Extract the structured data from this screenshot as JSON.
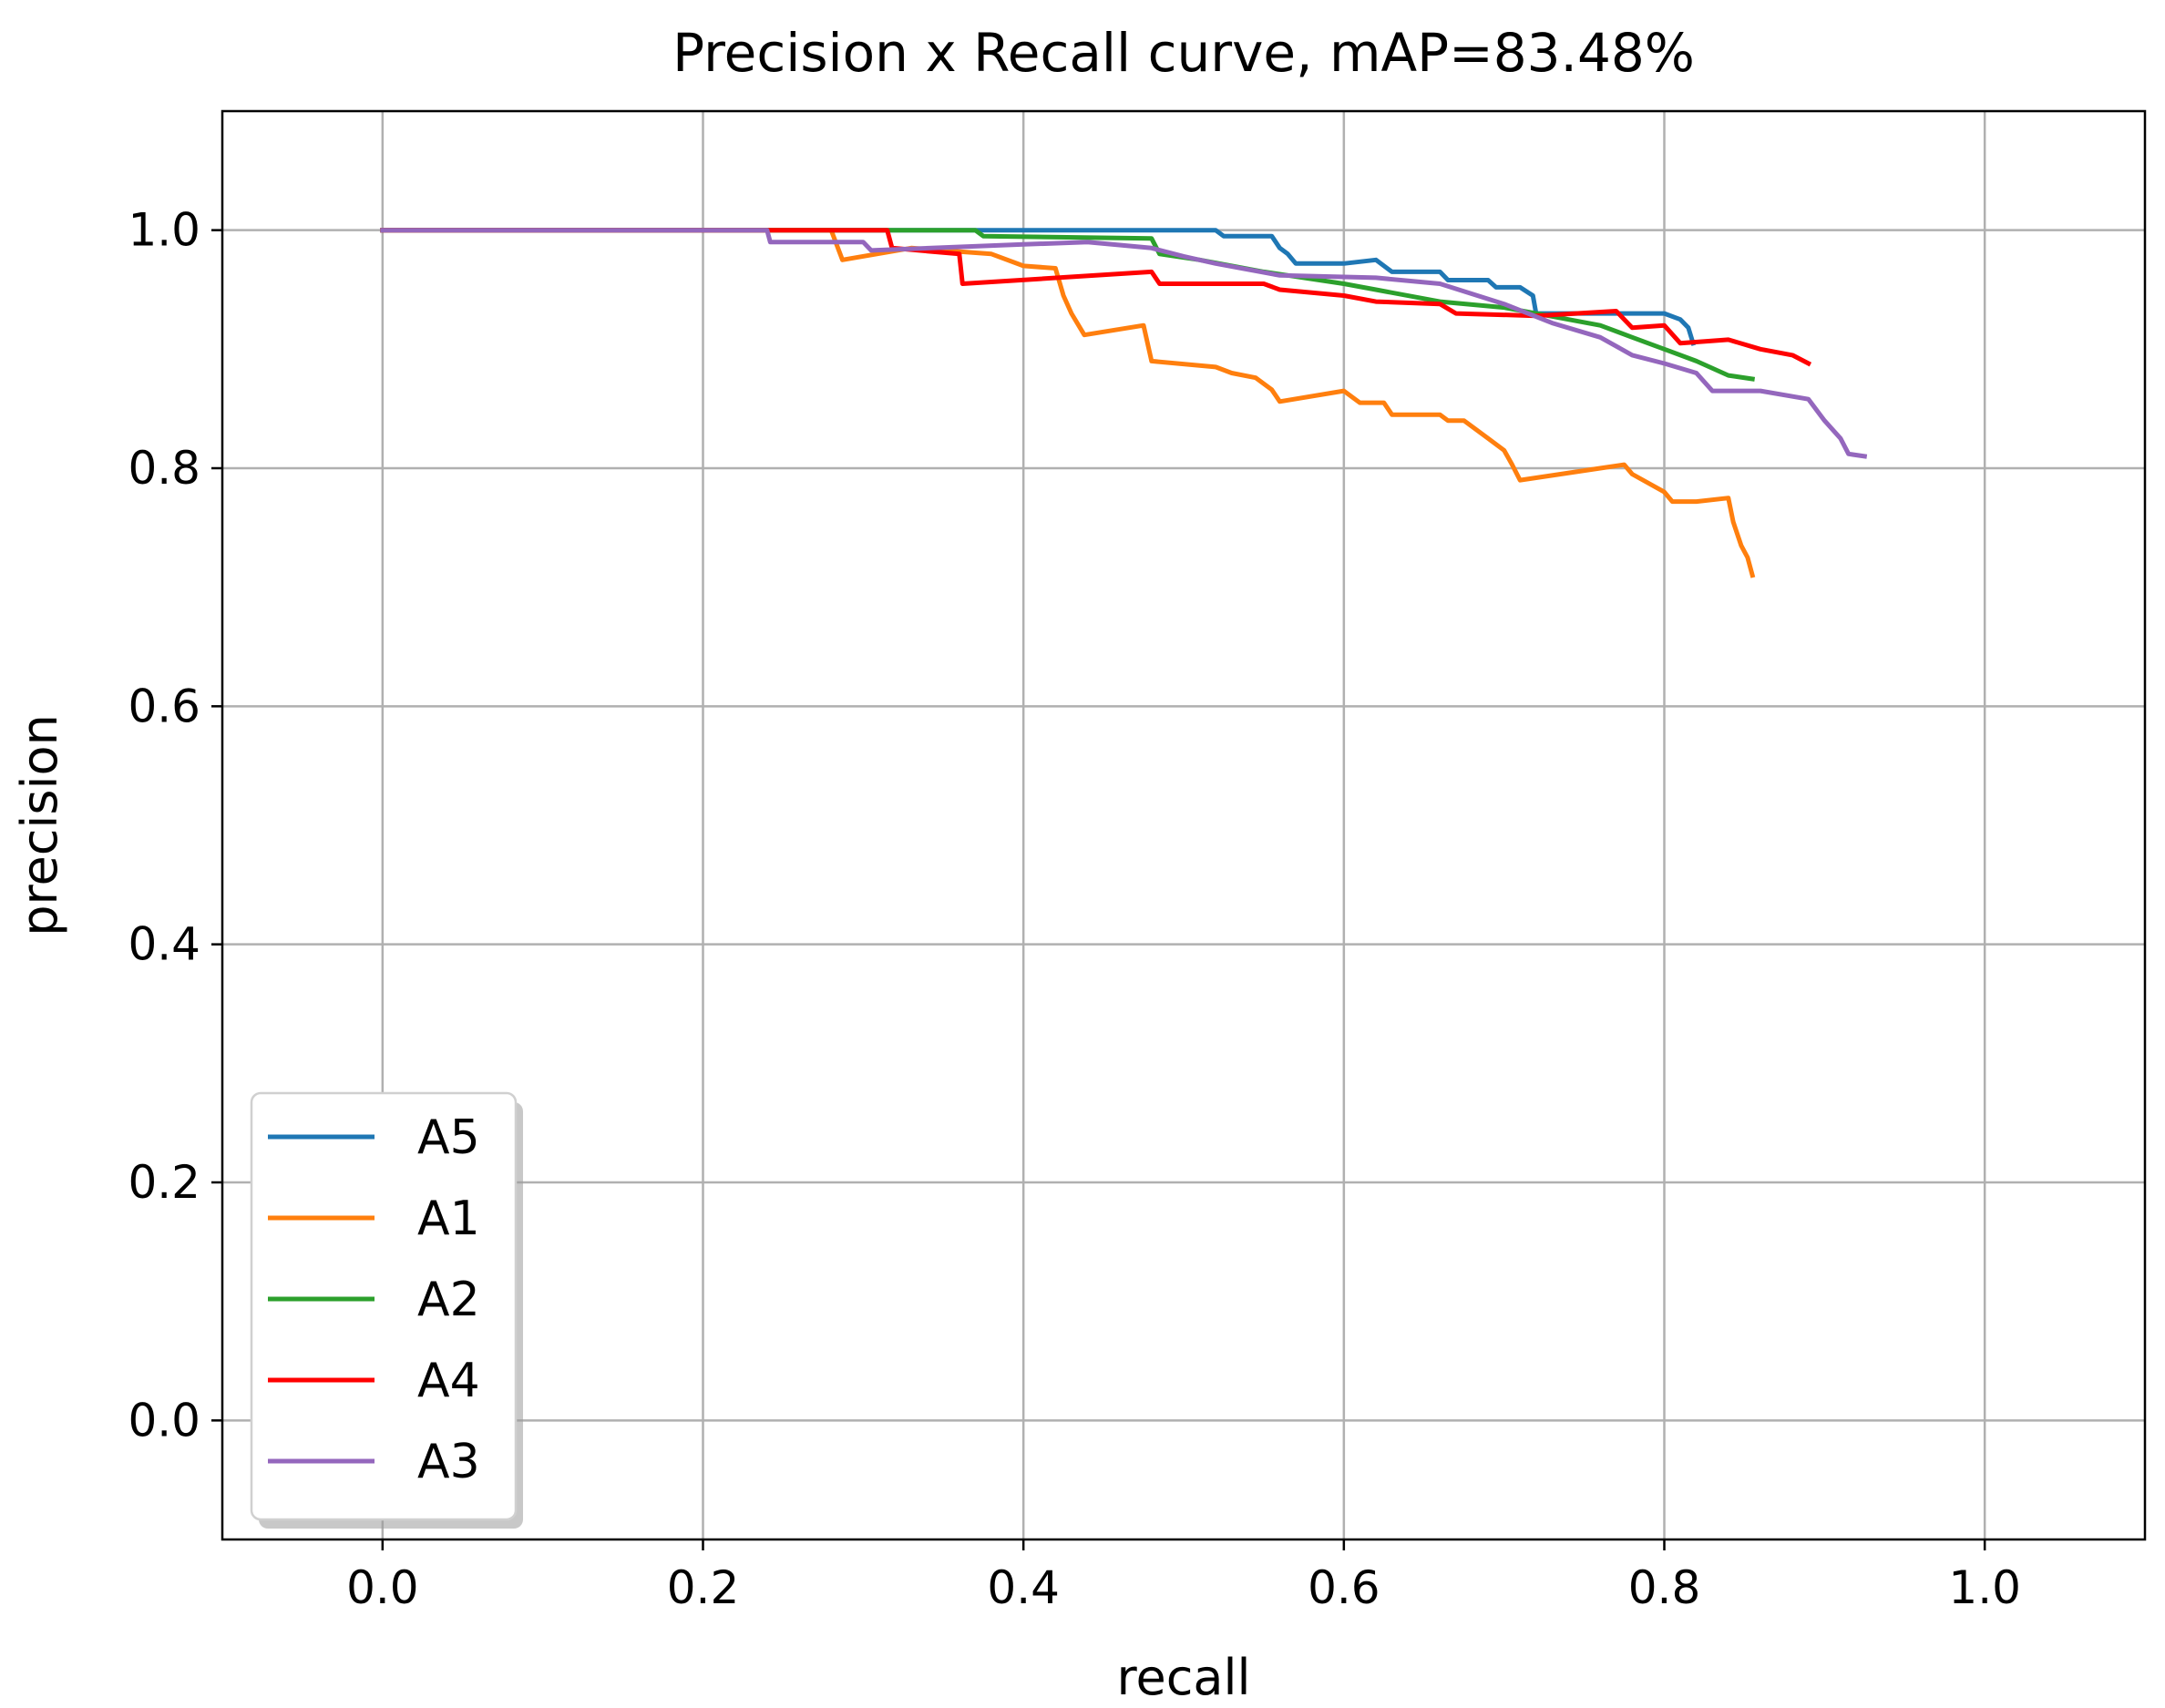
{
  "chart_data": {
    "type": "line",
    "title": "Precision x Recall curve, mAP=83.48%",
    "xlabel": "recall",
    "ylabel": "precision",
    "xlim": [
      -0.1,
      1.1
    ],
    "ylim": [
      -0.1,
      1.1
    ],
    "xticks": [
      0.0,
      0.2,
      0.4,
      0.6,
      0.8,
      1.0
    ],
    "xtick_labels": [
      "0.0",
      "0.2",
      "0.4",
      "0.6",
      "0.8",
      "1.0"
    ],
    "yticks": [
      0.0,
      0.2,
      0.4,
      0.6,
      0.8,
      1.0
    ],
    "ytick_labels": [
      "0.0",
      "0.2",
      "0.4",
      "0.6",
      "0.8",
      "1.0"
    ],
    "grid": true,
    "legend_position": "lower-left",
    "series": [
      {
        "name": "A5",
        "color": "#1f77b4",
        "points": [
          [
            0.0,
            1.0
          ],
          [
            0.52,
            1.0
          ],
          [
            0.525,
            0.995
          ],
          [
            0.555,
            0.995
          ],
          [
            0.56,
            0.985
          ],
          [
            0.565,
            0.98
          ],
          [
            0.57,
            0.972
          ],
          [
            0.6,
            0.972
          ],
          [
            0.62,
            0.975
          ],
          [
            0.63,
            0.965
          ],
          [
            0.66,
            0.965
          ],
          [
            0.665,
            0.958
          ],
          [
            0.69,
            0.958
          ],
          [
            0.695,
            0.952
          ],
          [
            0.71,
            0.952
          ],
          [
            0.718,
            0.945
          ],
          [
            0.72,
            0.93
          ],
          [
            0.76,
            0.93
          ],
          [
            0.8,
            0.93
          ],
          [
            0.81,
            0.925
          ],
          [
            0.815,
            0.918
          ],
          [
            0.818,
            0.905
          ]
        ]
      },
      {
        "name": "A1",
        "color": "#ff7f0e",
        "points": [
          [
            0.0,
            1.0
          ],
          [
            0.28,
            1.0
          ],
          [
            0.287,
            0.975
          ],
          [
            0.33,
            0.985
          ],
          [
            0.38,
            0.98
          ],
          [
            0.4,
            0.97
          ],
          [
            0.42,
            0.968
          ],
          [
            0.425,
            0.945
          ],
          [
            0.43,
            0.93
          ],
          [
            0.438,
            0.912
          ],
          [
            0.475,
            0.92
          ],
          [
            0.48,
            0.89
          ],
          [
            0.52,
            0.885
          ],
          [
            0.53,
            0.88
          ],
          [
            0.545,
            0.876
          ],
          [
            0.555,
            0.866
          ],
          [
            0.56,
            0.856
          ],
          [
            0.6,
            0.865
          ],
          [
            0.61,
            0.855
          ],
          [
            0.625,
            0.855
          ],
          [
            0.63,
            0.845
          ],
          [
            0.66,
            0.845
          ],
          [
            0.665,
            0.84
          ],
          [
            0.675,
            0.84
          ],
          [
            0.69,
            0.825
          ],
          [
            0.7,
            0.815
          ],
          [
            0.705,
            0.803
          ],
          [
            0.71,
            0.79
          ],
          [
            0.76,
            0.8
          ],
          [
            0.775,
            0.803
          ],
          [
            0.78,
            0.795
          ],
          [
            0.8,
            0.78
          ],
          [
            0.805,
            0.772
          ],
          [
            0.82,
            0.772
          ],
          [
            0.84,
            0.775
          ],
          [
            0.843,
            0.755
          ],
          [
            0.848,
            0.735
          ],
          [
            0.852,
            0.725
          ],
          [
            0.855,
            0.71
          ]
        ]
      },
      {
        "name": "A2",
        "color": "#2ca02c",
        "points": [
          [
            0.0,
            1.0
          ],
          [
            0.37,
            1.0
          ],
          [
            0.375,
            0.995
          ],
          [
            0.48,
            0.993
          ],
          [
            0.485,
            0.98
          ],
          [
            0.51,
            0.975
          ],
          [
            0.55,
            0.965
          ],
          [
            0.6,
            0.955
          ],
          [
            0.62,
            0.95
          ],
          [
            0.66,
            0.94
          ],
          [
            0.7,
            0.935
          ],
          [
            0.72,
            0.93
          ],
          [
            0.76,
            0.92
          ],
          [
            0.78,
            0.91
          ],
          [
            0.8,
            0.9
          ],
          [
            0.82,
            0.89
          ],
          [
            0.84,
            0.878
          ],
          [
            0.855,
            0.875
          ]
        ]
      },
      {
        "name": "A4",
        "color": "#ff0000",
        "points": [
          [
            0.0,
            1.0
          ],
          [
            0.315,
            1.0
          ],
          [
            0.318,
            0.985
          ],
          [
            0.36,
            0.98
          ],
          [
            0.362,
            0.955
          ],
          [
            0.48,
            0.965
          ],
          [
            0.485,
            0.955
          ],
          [
            0.55,
            0.955
          ],
          [
            0.56,
            0.95
          ],
          [
            0.6,
            0.945
          ],
          [
            0.62,
            0.94
          ],
          [
            0.66,
            0.938
          ],
          [
            0.67,
            0.93
          ],
          [
            0.72,
            0.928
          ],
          [
            0.77,
            0.932
          ],
          [
            0.78,
            0.918
          ],
          [
            0.8,
            0.92
          ],
          [
            0.81,
            0.905
          ],
          [
            0.84,
            0.908
          ],
          [
            0.86,
            0.9
          ],
          [
            0.88,
            0.895
          ],
          [
            0.89,
            0.888
          ]
        ]
      },
      {
        "name": "A3",
        "color": "#9467bd",
        "points": [
          [
            0.0,
            1.0
          ],
          [
            0.24,
            1.0
          ],
          [
            0.242,
            0.99
          ],
          [
            0.3,
            0.99
          ],
          [
            0.305,
            0.983
          ],
          [
            0.4,
            0.988
          ],
          [
            0.44,
            0.99
          ],
          [
            0.48,
            0.985
          ],
          [
            0.5,
            0.978
          ],
          [
            0.52,
            0.972
          ],
          [
            0.56,
            0.962
          ],
          [
            0.62,
            0.96
          ],
          [
            0.66,
            0.955
          ],
          [
            0.7,
            0.938
          ],
          [
            0.73,
            0.922
          ],
          [
            0.76,
            0.91
          ],
          [
            0.78,
            0.895
          ],
          [
            0.8,
            0.888
          ],
          [
            0.82,
            0.88
          ],
          [
            0.83,
            0.865
          ],
          [
            0.86,
            0.865
          ],
          [
            0.89,
            0.858
          ],
          [
            0.9,
            0.84
          ],
          [
            0.91,
            0.825
          ],
          [
            0.915,
            0.812
          ],
          [
            0.925,
            0.81
          ]
        ]
      }
    ]
  }
}
